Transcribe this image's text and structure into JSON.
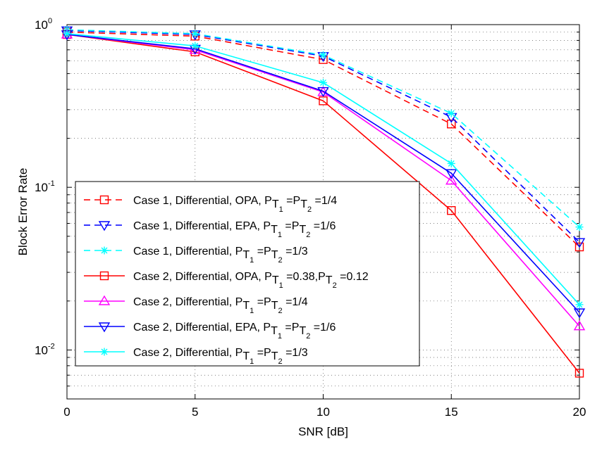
{
  "chart_data": {
    "type": "line",
    "xlabel": "SNR [dB]",
    "ylabel": "Block Error Rate",
    "x": [
      0,
      5,
      10,
      15,
      20
    ],
    "xlim": [
      0,
      20
    ],
    "ylim": [
      0.005,
      1
    ],
    "yscale": "log",
    "grid": true,
    "legend_position": "bottom-left",
    "xticks": [
      0,
      5,
      10,
      15,
      20
    ],
    "yticks": [
      {
        "value": 1,
        "base": "10",
        "exp": "0"
      },
      {
        "value": 0.1,
        "base": "10",
        "exp": "-1"
      },
      {
        "value": 0.01,
        "base": "10",
        "exp": "-2"
      }
    ],
    "series": [
      {
        "name": "Case 1, Differential, OPA, P",
        "sub1": "T",
        "sub2": "1",
        "mid": " =P",
        "sub3": "T",
        "sub4": "2",
        "tail": " =1/4",
        "color": "#ff0000",
        "dash": true,
        "marker": "square",
        "values": [
          0.9,
          0.85,
          0.61,
          0.245,
          0.043
        ]
      },
      {
        "name": "Case 1, Differential, EPA, P",
        "sub1": "T",
        "sub2": "1",
        "mid": " =P",
        "sub3": "T",
        "sub4": "2",
        "tail": " =1/6",
        "color": "#0000ff",
        "dash": true,
        "marker": "triangle-down",
        "values": [
          0.92,
          0.87,
          0.64,
          0.27,
          0.046
        ]
      },
      {
        "name": "Case 1, Differential, P",
        "sub1": "T",
        "sub2": "1",
        "mid": " =P",
        "sub3": "T",
        "sub4": "2",
        "tail": " =1/3",
        "color": "#00ffff",
        "dash": true,
        "marker": "star",
        "values": [
          0.93,
          0.88,
          0.65,
          0.285,
          0.057
        ]
      },
      {
        "name": "Case 2, Differential, OPA, P",
        "sub1": "T",
        "sub2": "1",
        "mid": " =0.38,P",
        "sub3": "T",
        "sub4": "2",
        "tail": " =0.12",
        "color": "#ff0000",
        "dash": false,
        "marker": "square",
        "values": [
          0.87,
          0.68,
          0.34,
          0.072,
          0.0072
        ]
      },
      {
        "name": "Case 2, Differential, P",
        "sub1": "T",
        "sub2": "1",
        "mid": " =P",
        "sub3": "T",
        "sub4": "2",
        "tail": " =1/4",
        "color": "#ff00ff",
        "dash": false,
        "marker": "triangle-up",
        "values": [
          0.87,
          0.7,
          0.385,
          0.11,
          0.014
        ]
      },
      {
        "name": "Case 2, Differential, EPA, P",
        "sub1": "T",
        "sub2": "1",
        "mid": " =P",
        "sub3": "T",
        "sub4": "2",
        "tail": " =1/6",
        "color": "#0000ff",
        "dash": false,
        "marker": "triangle-down",
        "values": [
          0.87,
          0.71,
          0.39,
          0.122,
          0.017
        ]
      },
      {
        "name": "Case 2, Differential, P",
        "sub1": "T",
        "sub2": "1",
        "mid": " =P",
        "sub3": "T",
        "sub4": "2",
        "tail": " =1/3",
        "color": "#00ffff",
        "dash": false,
        "marker": "star",
        "values": [
          0.88,
          0.74,
          0.44,
          0.14,
          0.019
        ]
      }
    ]
  }
}
